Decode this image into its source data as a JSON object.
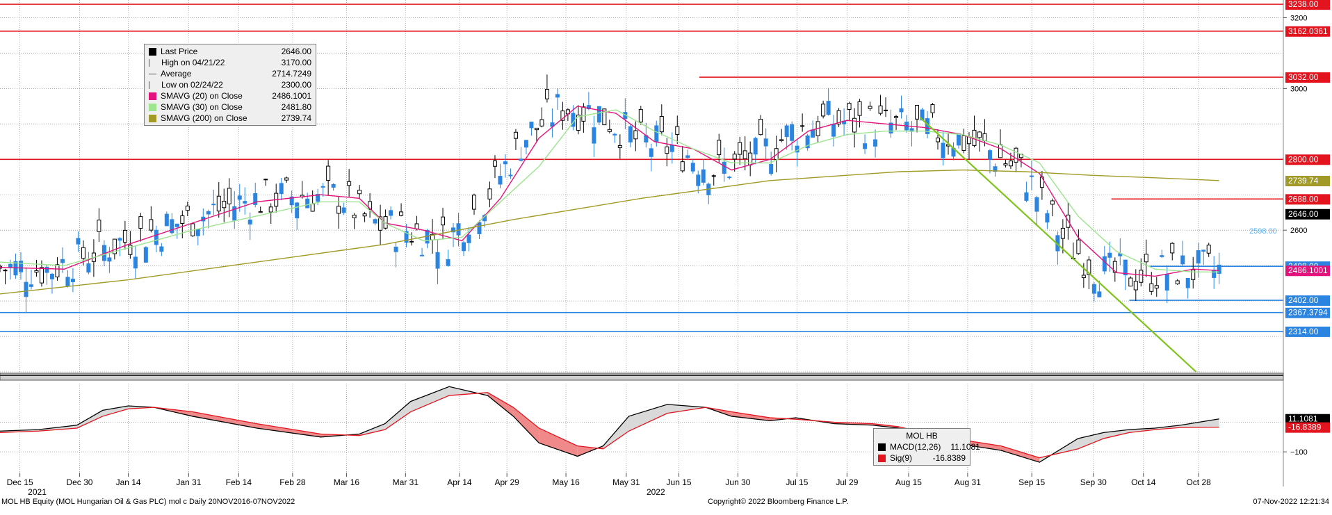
{
  "chart_data": [
    {
      "type": "candlestick",
      "panel": "price",
      "ylim": [
        2200,
        3250
      ],
      "yticks": [
        2600,
        3000,
        3200
      ],
      "price_tags": [
        {
          "label": "3238.00",
          "value": 3238.0,
          "color": "#e3141e"
        },
        {
          "label": "3162.0361",
          "value": 3162.0361,
          "color": "#e3141e"
        },
        {
          "label": "3032.00",
          "value": 3032.0,
          "color": "#e3141e"
        },
        {
          "label": "2800.00",
          "value": 2800.0,
          "color": "#e3141e"
        },
        {
          "label": "2739.74",
          "value": 2739.74,
          "color": "#a19a26"
        },
        {
          "label": "2688.00",
          "value": 2688.0,
          "color": "#e3141e"
        },
        {
          "label": "2646.00",
          "value": 2646.0,
          "color": "#000000"
        },
        {
          "label": "2498.00",
          "value": 2498.0,
          "color": "#2a84e0"
        },
        {
          "label": "2486.1001",
          "value": 2486.1001,
          "color": "#e4127c"
        },
        {
          "label": "2402.00",
          "value": 2402.0,
          "color": "#2a84e0"
        },
        {
          "label": "2367.3794",
          "value": 2367.3794,
          "color": "#2a84e0"
        },
        {
          "label": "2314.00",
          "value": 2314.0,
          "color": "#2a84e0"
        }
      ],
      "floating_label": {
        "text": "2598.00",
        "value": 2598.0
      },
      "horizontal_lines": [
        {
          "value": 3238.0,
          "color": "#e3141e",
          "from": 0
        },
        {
          "value": 3162.0361,
          "color": "#e3141e",
          "from": 0
        },
        {
          "value": 3032.0,
          "color": "#e3141e",
          "from": 0.545
        },
        {
          "value": 2800.0,
          "color": "#e3141e",
          "from": 0
        },
        {
          "value": 2688.0,
          "color": "#e3141e",
          "from": 0.866
        },
        {
          "value": 2498.0,
          "color": "#2a84e0",
          "from": 0.896
        },
        {
          "value": 2402.0,
          "color": "#2a84e0",
          "from": 0.88
        },
        {
          "value": 2367.3794,
          "color": "#2a84e0",
          "from": 0
        },
        {
          "value": 2314.0,
          "color": "#2a84e0",
          "from": 0
        }
      ],
      "trendline": {
        "color": "#7fc31c",
        "x1": 0.717,
        "y1": 2918,
        "x2": 0.932,
        "y2": 2200
      },
      "legend": [
        {
          "label": "Last Price",
          "value": "2646.00",
          "symbol": "box-black"
        },
        {
          "label": "High on 04/21/22",
          "value": "3170.00",
          "symbol": "high"
        },
        {
          "label": "Average",
          "value": "2714.7249",
          "symbol": "avg"
        },
        {
          "label": "Low on 02/24/22",
          "value": "2300.00",
          "symbol": "low"
        },
        {
          "label": "SMAVG (20)  on Close",
          "value": "2486.1001",
          "symbol": "box-pink"
        },
        {
          "label": "SMAVG (30)  on Close",
          "value": "2481.80",
          "symbol": "box-green"
        },
        {
          "label": "SMAVG (200)  on Close",
          "value": "2739.74",
          "symbol": "box-olive"
        }
      ],
      "series": [
        {
          "name": "SMAVG (20)  on Close",
          "color": "#e4127c",
          "x": [
            0.0,
            0.05,
            0.1,
            0.15,
            0.2,
            0.25,
            0.28,
            0.3,
            0.33,
            0.36,
            0.39,
            0.42,
            0.45,
            0.48,
            0.51,
            0.54,
            0.57,
            0.6,
            0.63,
            0.66,
            0.69,
            0.72,
            0.75,
            0.78,
            0.81,
            0.84,
            0.87,
            0.9,
            0.93,
            0.95
          ],
          "values": [
            2495,
            2490,
            2560,
            2620,
            2680,
            2700,
            2690,
            2620,
            2600,
            2570,
            2690,
            2860,
            2950,
            2930,
            2850,
            2830,
            2770,
            2800,
            2880,
            2910,
            2900,
            2890,
            2870,
            2830,
            2760,
            2580,
            2480,
            2470,
            2490,
            2486
          ]
        },
        {
          "name": "SMAVG (30)  on Close",
          "color": "#9de58f",
          "x": [
            0.0,
            0.05,
            0.1,
            0.15,
            0.2,
            0.25,
            0.28,
            0.3,
            0.33,
            0.36,
            0.39,
            0.42,
            0.45,
            0.48,
            0.51,
            0.54,
            0.57,
            0.6,
            0.63,
            0.66,
            0.69,
            0.72,
            0.75,
            0.78,
            0.81,
            0.84,
            0.87,
            0.9,
            0.93,
            0.95
          ],
          "values": [
            2510,
            2500,
            2550,
            2600,
            2640,
            2680,
            2680,
            2620,
            2570,
            2580,
            2680,
            2780,
            2920,
            2940,
            2880,
            2830,
            2790,
            2790,
            2840,
            2870,
            2880,
            2880,
            2870,
            2840,
            2790,
            2640,
            2540,
            2490,
            2482,
            2482
          ]
        },
        {
          "name": "SMAVG (200)  on Close",
          "color": "#a19a26",
          "x": [
            0.0,
            0.1,
            0.2,
            0.3,
            0.4,
            0.5,
            0.6,
            0.7,
            0.75,
            0.8,
            0.85,
            0.9,
            0.95
          ],
          "values": [
            2420,
            2460,
            2510,
            2560,
            2630,
            2690,
            2740,
            2765,
            2770,
            2765,
            2755,
            2748,
            2740
          ]
        }
      ]
    },
    {
      "type": "line",
      "panel": "macd",
      "ylim": [
        -170,
        130
      ],
      "yticks": [
        -100
      ],
      "price_tags": [
        {
          "label": "11.1081",
          "value": 11.1081,
          "color": "#000000"
        },
        {
          "label": "-16.8389",
          "value": -16.8389,
          "color": "#e3141e"
        }
      ],
      "legend_title": "MOL HB",
      "legend": [
        {
          "label": "MACD(12,26)",
          "value": "11.1081",
          "color": "#000000"
        },
        {
          "label": "Sig(9)",
          "value": "-16.8389",
          "color": "#e3141e"
        }
      ],
      "x": [
        0.0,
        0.03,
        0.06,
        0.08,
        0.1,
        0.12,
        0.15,
        0.2,
        0.25,
        0.28,
        0.3,
        0.32,
        0.35,
        0.38,
        0.4,
        0.42,
        0.45,
        0.47,
        0.49,
        0.52,
        0.55,
        0.57,
        0.6,
        0.62,
        0.65,
        0.68,
        0.7,
        0.72,
        0.75,
        0.78,
        0.81,
        0.84,
        0.86,
        0.88,
        0.9,
        0.92,
        0.95
      ],
      "series": [
        {
          "name": "MACD(12,26)",
          "color": "#000000",
          "values": [
            -30,
            -25,
            -10,
            40,
            55,
            50,
            20,
            -20,
            -50,
            -40,
            -5,
            70,
            120,
            90,
            20,
            -70,
            -115,
            -80,
            20,
            60,
            50,
            20,
            5,
            15,
            -5,
            -10,
            -20,
            -50,
            -75,
            -95,
            -135,
            -55,
            -35,
            -25,
            -20,
            -10,
            11.1
          ]
        },
        {
          "name": "Sig(9)",
          "color": "#e3141e",
          "values": [
            -35,
            -30,
            -20,
            20,
            45,
            50,
            35,
            -5,
            -40,
            -45,
            -25,
            35,
            90,
            100,
            50,
            -20,
            -80,
            -90,
            -30,
            30,
            50,
            35,
            15,
            10,
            0,
            -5,
            -15,
            -35,
            -60,
            -80,
            -120,
            -90,
            -55,
            -35,
            -25,
            -18,
            -16.8
          ]
        }
      ]
    }
  ],
  "x_axis": {
    "ticks": [
      {
        "label": "Dec 15",
        "pos": 0.0155
      },
      {
        "label": "Dec 30",
        "pos": 0.062
      },
      {
        "label": "Jan 14",
        "pos": 0.1
      },
      {
        "label": "Jan 31",
        "pos": 0.147
      },
      {
        "label": "Feb 14",
        "pos": 0.186
      },
      {
        "label": "Feb 28",
        "pos": 0.228
      },
      {
        "label": "Mar 16",
        "pos": 0.27
      },
      {
        "label": "Mar 31",
        "pos": 0.316
      },
      {
        "label": "Apr 14",
        "pos": 0.358
      },
      {
        "label": "Apr 29",
        "pos": 0.395
      },
      {
        "label": "May 16",
        "pos": 0.441
      },
      {
        "label": "May 31",
        "pos": 0.488
      },
      {
        "label": "Jun 15",
        "pos": 0.529
      },
      {
        "label": "Jun 30",
        "pos": 0.575
      },
      {
        "label": "Jul 15",
        "pos": 0.621
      },
      {
        "label": "Jul 29",
        "pos": 0.66
      },
      {
        "label": "Aug 15",
        "pos": 0.708
      },
      {
        "label": "Aug 31",
        "pos": 0.754
      },
      {
        "label": "Sep 15",
        "pos": 0.804
      },
      {
        "label": "Sep 30",
        "pos": 0.852
      },
      {
        "label": "Oct 14",
        "pos": 0.891
      },
      {
        "label": "Oct 28",
        "pos": 0.934
      }
    ],
    "years": [
      {
        "label": "2021",
        "pos": 0.029
      },
      {
        "label": "2022",
        "pos": 0.511
      }
    ]
  },
  "footer": {
    "left": "MOL HB Equity (MOL Hungarian Oil & Gas PLC) mol c  Daily 20NOV2016-07NOV2022",
    "center": "Copyright© 2022 Bloomberg Finance L.P.",
    "right": "07-Nov-2022 12:21:34"
  },
  "colors": {
    "up": "#000000",
    "down": "#2a84e0",
    "resistance": "#e3141e",
    "support": "#2a84e0",
    "macd_fill_up": "#d9d9d9",
    "macd_fill_down": "#f08a8a"
  }
}
